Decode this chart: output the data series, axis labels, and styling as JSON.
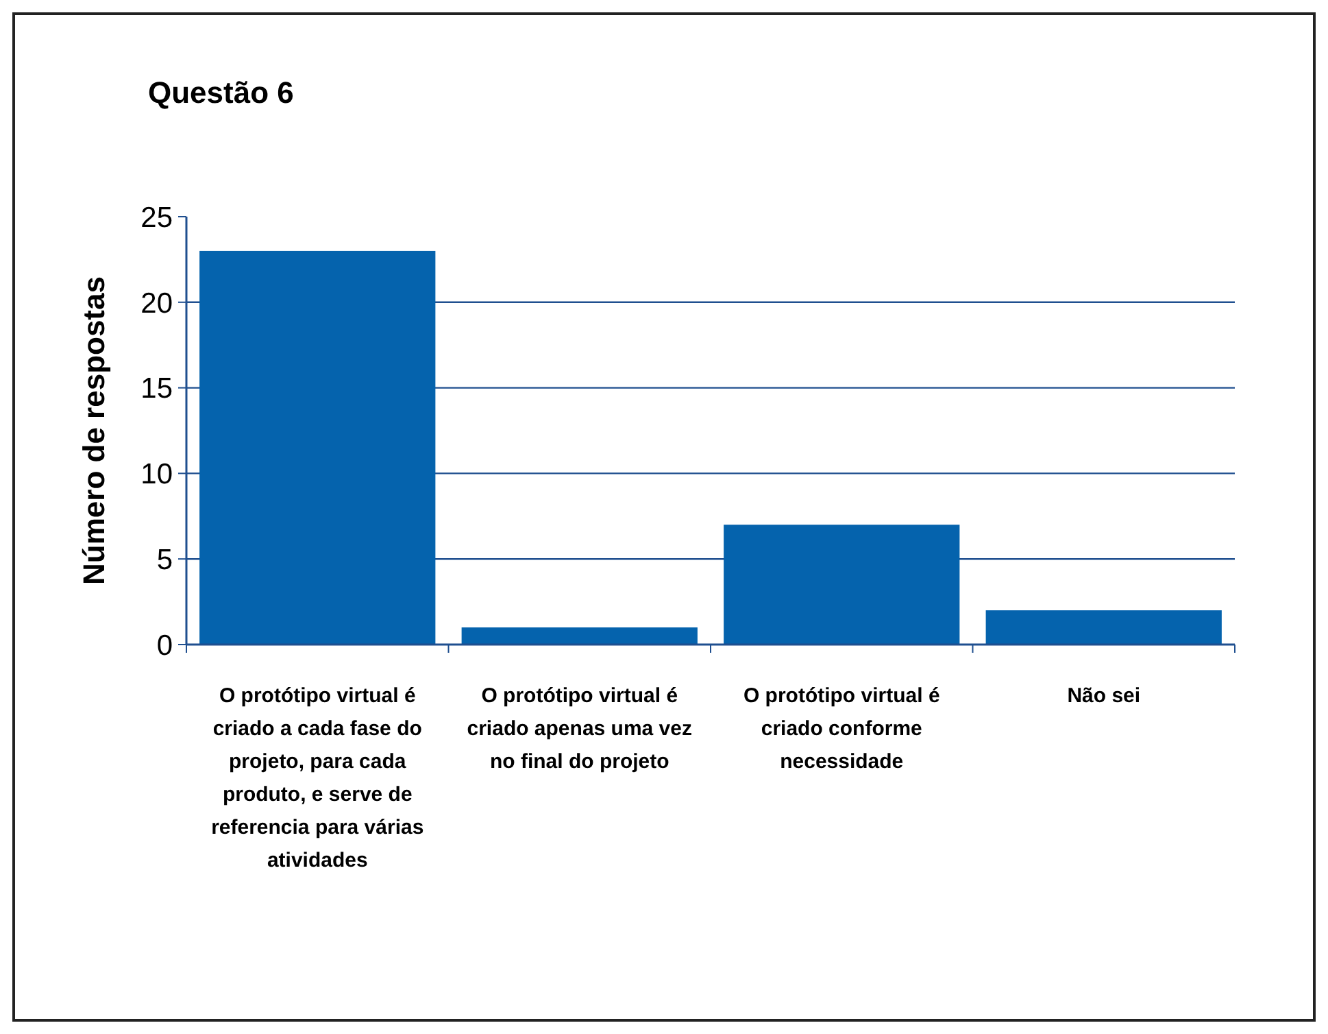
{
  "chart_data": {
    "type": "bar",
    "title": "Questão 6",
    "ylabel": "Número de respostas",
    "categories": [
      "O protótipo virtual é criado a cada fase do projeto, para cada produto, e serve de referencia para várias atividades",
      "O protótipo virtual é criado apenas uma vez no final do projeto",
      "O protótipo virtual é criado conforme necessidade",
      "Não sei"
    ],
    "values": [
      23,
      1,
      7,
      2
    ],
    "color": "#0563ad",
    "ylim": [
      0,
      25
    ],
    "yticks": [
      0,
      5,
      10,
      15,
      20,
      25
    ],
    "grid": "y"
  }
}
